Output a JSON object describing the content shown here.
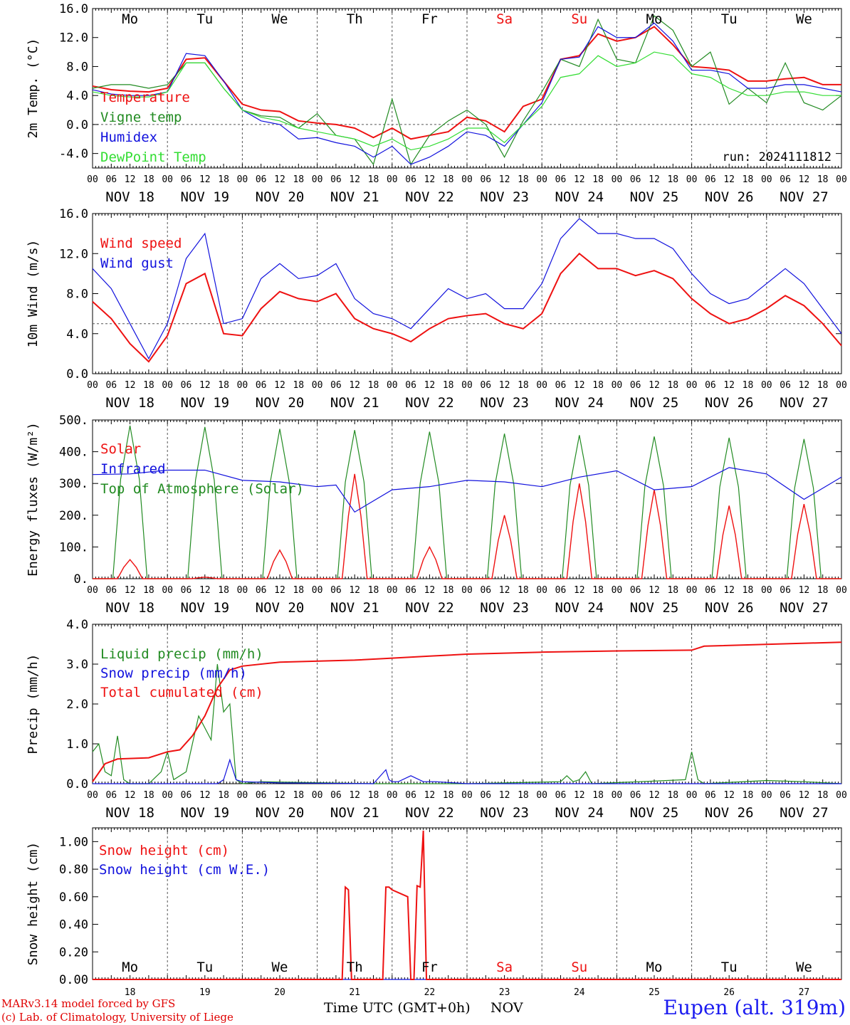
{
  "x_axis": {
    "hour_ticks": [
      "00",
      "06",
      "12",
      "18"
    ],
    "last_tick": "00",
    "dates": [
      "NOV 18",
      "NOV 19",
      "NOV 20",
      "NOV 21",
      "NOV 22",
      "NOV 23",
      "NOV 24",
      "NOV 25",
      "NOV 26",
      "NOV 27"
    ],
    "weekdays": [
      "Mo",
      "Tu",
      "We",
      "Th",
      "Fr",
      "Sa",
      "Su",
      "Mo",
      "Tu",
      "We"
    ],
    "day_numbers": [
      "18",
      "19",
      "20",
      "21",
      "22",
      "23",
      "24",
      "25",
      "26",
      "27"
    ],
    "title": "Time UTC (GMT+0h)",
    "month": "NOV"
  },
  "colors": {
    "red": "#ee1111",
    "green": "#228b22",
    "blue": "#1111dd",
    "lightgreen": "#33dd33",
    "weekend": "#ee1111",
    "weekday": "#000000"
  },
  "run_label": "run: 2024111812",
  "footer": {
    "line1": "MARv3.14 model forced by GFS",
    "line2": "(c) Lab. of Climatology, University of Liege",
    "station": "Eupen (alt. 319m)"
  },
  "chart_data": [
    {
      "type": "line",
      "ylabel": "2m Temp. (°C)",
      "ylim": [
        -6,
        16
      ],
      "yticks": [
        "16.0",
        "12.0",
        "8.0",
        "4.0",
        "0.0",
        "-4.0"
      ],
      "dashed_y": 0,
      "x_hours": [
        0,
        6,
        12,
        18,
        24,
        30,
        36,
        42,
        48,
        54,
        60,
        66,
        72,
        78,
        84,
        90,
        96,
        102,
        108,
        114,
        120,
        126,
        132,
        138,
        144,
        150,
        156,
        162,
        168,
        174,
        180,
        186,
        192,
        198,
        204,
        210,
        216,
        222,
        228,
        234,
        240
      ],
      "series": [
        {
          "name": "Temperature",
          "color": "red",
          "values": [
            5.3,
            4.8,
            4.6,
            4.5,
            5.0,
            9.0,
            9.2,
            6.0,
            2.8,
            2.0,
            1.8,
            0.5,
            0.2,
            0.0,
            -0.5,
            -1.8,
            -0.5,
            -2.0,
            -1.5,
            -1.0,
            1.0,
            0.5,
            -1.0,
            2.5,
            3.5,
            9.0,
            9.5,
            12.5,
            11.5,
            12.0,
            13.5,
            11.0,
            8.0,
            7.8,
            7.5,
            6.0,
            6.0,
            6.3,
            6.5,
            5.5,
            5.5
          ]
        },
        {
          "name": "Vigne temp",
          "color": "green",
          "values": [
            5.0,
            5.5,
            5.5,
            5.0,
            5.5,
            8.5,
            8.5,
            5.0,
            2.0,
            1.2,
            1.0,
            -0.5,
            1.5,
            -1.5,
            -2.0,
            -5.5,
            3.5,
            -5.5,
            -1.5,
            0.5,
            2.0,
            0.0,
            -4.5,
            0.5,
            4.5,
            9.0,
            8.0,
            14.5,
            9.0,
            8.5,
            15.0,
            13.0,
            8.0,
            10.0,
            2.8,
            5.0,
            3.0,
            8.5,
            3.0,
            2.0,
            4.0
          ]
        },
        {
          "name": "Humidex",
          "color": "blue",
          "values": [
            4.8,
            4.2,
            4.0,
            4.0,
            4.5,
            9.8,
            9.5,
            6.0,
            2.0,
            0.5,
            0.0,
            -2.0,
            -1.8,
            -2.5,
            -3.0,
            -4.5,
            -3.0,
            -5.5,
            -4.5,
            -3.0,
            -1.0,
            -1.5,
            -3.0,
            0.0,
            3.0,
            9.0,
            9.3,
            13.5,
            12.0,
            12.0,
            14.0,
            11.5,
            7.5,
            7.5,
            7.0,
            5.0,
            5.0,
            5.5,
            5.5,
            5.0,
            4.5
          ]
        },
        {
          "name": "DewPoint Temp",
          "color": "lightgreen",
          "values": [
            4.5,
            4.0,
            3.8,
            3.8,
            4.5,
            8.5,
            8.5,
            5.0,
            2.0,
            1.0,
            0.5,
            -0.5,
            -1.0,
            -1.5,
            -2.0,
            -3.0,
            -2.0,
            -3.5,
            -3.0,
            -2.0,
            -0.5,
            -0.5,
            -2.5,
            0.0,
            2.5,
            6.5,
            7.0,
            9.5,
            8.0,
            8.5,
            10.0,
            9.5,
            7.0,
            6.5,
            5.0,
            4.0,
            4.0,
            4.5,
            4.5,
            4.0,
            4.0
          ]
        }
      ]
    },
    {
      "type": "line",
      "ylabel": "10m Wind (m/s)",
      "ylim": [
        0,
        16
      ],
      "yticks": [
        "16.0",
        "12.0",
        "8.0",
        "4.0",
        "0.0"
      ],
      "dashed_y": 5,
      "x_hours": [
        0,
        6,
        12,
        18,
        24,
        30,
        36,
        42,
        48,
        54,
        60,
        66,
        72,
        78,
        84,
        90,
        96,
        102,
        108,
        114,
        120,
        126,
        132,
        138,
        144,
        150,
        156,
        162,
        168,
        174,
        180,
        186,
        192,
        198,
        204,
        210,
        216,
        222,
        228,
        234,
        240
      ],
      "series": [
        {
          "name": "Wind speed",
          "color": "red",
          "values": [
            7.2,
            5.5,
            3.0,
            1.2,
            3.8,
            9.0,
            10.0,
            4.0,
            3.8,
            6.5,
            8.2,
            7.5,
            7.2,
            8.0,
            5.5,
            4.5,
            4.0,
            3.2,
            4.5,
            5.5,
            5.8,
            6.0,
            5.0,
            4.5,
            6.0,
            10.0,
            12.0,
            10.5,
            10.5,
            9.8,
            10.3,
            9.5,
            7.5,
            6.0,
            5.0,
            5.5,
            6.5,
            7.8,
            6.8,
            5.0,
            2.8
          ]
        },
        {
          "name": "Wind gust",
          "color": "blue",
          "values": [
            10.5,
            8.5,
            5.0,
            1.5,
            5.0,
            11.5,
            14.0,
            5.0,
            5.5,
            9.5,
            11.0,
            9.5,
            9.8,
            11.0,
            7.5,
            6.0,
            5.5,
            4.5,
            6.5,
            8.5,
            7.5,
            8.0,
            6.5,
            6.5,
            9.0,
            13.5,
            15.5,
            14.0,
            14.0,
            13.5,
            13.5,
            12.5,
            10.0,
            8.0,
            7.0,
            7.5,
            9.0,
            10.5,
            9.0,
            6.5,
            4.0
          ]
        }
      ]
    },
    {
      "type": "line",
      "ylabel": "Energy fluxes (W/m²)",
      "ylim": [
        0,
        500
      ],
      "yticks": [
        "500.",
        "400.",
        "300.",
        "200.",
        "100.",
        "0."
      ],
      "dashed_y": null,
      "series": [
        {
          "name": "Solar",
          "color": "red",
          "peaks": [
            60,
            5,
            90,
            330,
            100,
            200,
            300,
            280,
            230,
            235
          ]
        },
        {
          "name": "Infrared",
          "color": "blue",
          "x_hours": [
            0,
            12,
            24,
            36,
            48,
            60,
            72,
            78,
            84,
            96,
            108,
            120,
            132,
            144,
            156,
            168,
            180,
            192,
            204,
            216,
            228,
            240
          ],
          "values": [
            328,
            330,
            342,
            342,
            310,
            305,
            290,
            295,
            210,
            280,
            290,
            310,
            305,
            290,
            320,
            340,
            280,
            290,
            350,
            330,
            250,
            320
          ]
        },
        {
          "name": "Top of Atmosphere (Solar)",
          "color": "green",
          "peaks": [
            482,
            478,
            472,
            468,
            463,
            457,
            452,
            448,
            444,
            440
          ]
        }
      ]
    },
    {
      "type": "line",
      "ylabel": "Precip (mm/h)",
      "ylim": [
        0,
        4
      ],
      "yticks": [
        "4.0",
        "3.0",
        "2.0",
        "1.0",
        "0.0"
      ],
      "dashed_y": null,
      "series": [
        {
          "name": "Liquid precip (mm/h)",
          "color": "green",
          "x_hours": [
            0,
            2,
            4,
            6,
            8,
            10,
            12,
            18,
            22,
            24,
            26,
            30,
            34,
            38,
            40,
            42,
            44,
            46,
            48,
            54,
            90,
            120,
            150,
            152,
            154,
            156,
            158,
            160,
            190,
            192,
            194,
            196,
            216,
            228,
            240
          ],
          "values": [
            0.8,
            1.0,
            0.3,
            0.2,
            1.2,
            0.1,
            0.0,
            0.0,
            0.3,
            0.8,
            0.1,
            0.3,
            1.7,
            1.1,
            3.0,
            1.8,
            2.0,
            0.1,
            0.0,
            0.05,
            0.0,
            0.0,
            0.05,
            0.2,
            0.05,
            0.1,
            0.3,
            0.0,
            0.1,
            0.8,
            0.1,
            0.0,
            0.08,
            0.05,
            0.0
          ]
        },
        {
          "name": "Snow precip (mm/h)",
          "color": "blue",
          "x_hours": [
            0,
            40,
            42,
            44,
            46,
            48,
            60,
            90,
            94,
            95,
            96,
            98,
            102,
            106,
            110,
            120,
            240
          ],
          "values": [
            0.0,
            0.0,
            0.1,
            0.6,
            0.1,
            0.05,
            0.02,
            0.0,
            0.35,
            0.1,
            0.05,
            0.05,
            0.2,
            0.05,
            0.05,
            0.0,
            0.0
          ]
        },
        {
          "name": "Total cumulated (cm)",
          "color": "red",
          "x_hours": [
            0,
            4,
            8,
            18,
            24,
            28,
            32,
            36,
            40,
            44,
            46,
            48,
            60,
            84,
            96,
            108,
            120,
            144,
            168,
            192,
            196,
            240
          ],
          "values": [
            0.05,
            0.5,
            0.62,
            0.65,
            0.8,
            0.85,
            1.2,
            1.7,
            2.4,
            2.85,
            2.9,
            2.95,
            3.05,
            3.1,
            3.15,
            3.2,
            3.25,
            3.3,
            3.33,
            3.35,
            3.45,
            3.55
          ]
        }
      ]
    },
    {
      "type": "line",
      "ylabel": "Snow height (cm)",
      "ylim": [
        0,
        1.1
      ],
      "yticks": [
        "1.00",
        "0.80",
        "0.60",
        "0.40",
        "0.20",
        "0.00"
      ],
      "dashed_y": null,
      "series": [
        {
          "name": "Snow height (cm)",
          "color": "red",
          "x_hours": [
            0,
            80,
            81,
            82,
            83,
            84,
            93,
            94,
            95,
            96,
            101,
            102,
            103,
            104,
            105,
            106,
            107,
            240
          ],
          "values": [
            0,
            0,
            0.67,
            0.65,
            0,
            0,
            0,
            0.67,
            0.67,
            0.65,
            0.6,
            0,
            0,
            0.68,
            0.67,
            1.08,
            0,
            0
          ]
        },
        {
          "name": "Snow height (cm W.E.)",
          "color": "blue",
          "x_hours": [
            0,
            240
          ],
          "values": [
            0,
            0
          ]
        }
      ]
    }
  ]
}
